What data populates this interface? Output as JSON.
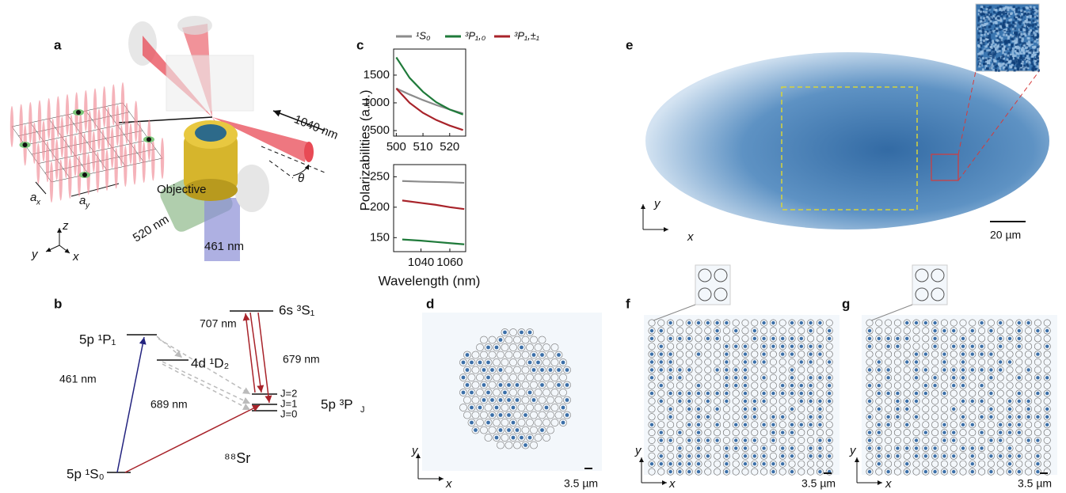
{
  "panel_labels": [
    "a",
    "b",
    "c",
    "d",
    "e",
    "f",
    "g"
  ],
  "panel_a": {
    "beam_ir": "1040 nm",
    "angle": "θ",
    "objective": "Objective",
    "lattice_x": {
      "main": "a",
      "sub": "x"
    },
    "lattice_y": {
      "main": "a",
      "sub": "y"
    },
    "beam_green": "520 nm",
    "beam_blue": "461 nm",
    "axes": {
      "z": "z",
      "y": "y",
      "x": "x"
    }
  },
  "panel_b": {
    "levels": {
      "p1": "5p ¹P₁",
      "d2": "4d ¹D₂",
      "s1": "6s ³S₁",
      "pj": {
        "main": "5p ³P",
        "sub": "J"
      },
      "s0": "5p ¹S₀",
      "j2": "J=2",
      "j1": "J=1",
      "j0": "J=0"
    },
    "transitions": {
      "t707": "707 nm",
      "t679": "679 nm",
      "t461": "461 nm",
      "t689": "689 nm"
    },
    "isotope": "⁸⁸Sr"
  },
  "chart_data": [
    {
      "type": "line",
      "ylabel": "Polarizabilities (a.u.)",
      "x": [
        500,
        505,
        510,
        515,
        520,
        525
      ],
      "xlim": [
        499,
        526
      ],
      "xticks": [
        500,
        510,
        520
      ],
      "ylim": [
        400,
        1970
      ],
      "yticks": [
        500,
        1000,
        1500
      ],
      "series": [
        {
          "name": "¹S₀",
          "color": "#8c8c8c",
          "values": [
            1260,
            1150,
            1050,
            960,
            880,
            810
          ]
        },
        {
          "name": "³P₁,₀",
          "color": "#1f7a3a",
          "values": [
            1820,
            1450,
            1200,
            1010,
            880,
            790
          ]
        },
        {
          "name": "³P₁,±₁",
          "color": "#a8232a",
          "values": [
            1260,
            1000,
            820,
            690,
            590,
            510
          ]
        }
      ]
    },
    {
      "type": "line",
      "xlabel": "Wavelength (nm)",
      "x": [
        1027,
        1040,
        1050,
        1060,
        1070
      ],
      "xlim": [
        1021,
        1071
      ],
      "xticks": [
        1040,
        1060
      ],
      "ylim": [
        127,
        270
      ],
      "yticks": [
        150,
        200,
        250
      ],
      "series": [
        {
          "color": "#8c8c8c",
          "values": [
            243,
            242,
            241.5,
            241,
            240
          ]
        },
        {
          "color": "#1f7a3a",
          "values": [
            147,
            145,
            143,
            141,
            139
          ]
        },
        {
          "color": "#a8232a",
          "values": [
            211,
            207,
            204,
            200,
            197
          ]
        }
      ]
    }
  ],
  "panel_d": {
    "axes": {
      "y": "y",
      "x": "x"
    },
    "scale": "3.5 µm"
  },
  "panel_e": {
    "axes": {
      "y": "y",
      "x": "x"
    },
    "scale": "20 µm"
  },
  "panel_f": {
    "axes": {
      "y": "y",
      "x": "x"
    },
    "scale": "3.5 µm"
  },
  "panel_g": {
    "axes": {
      "y": "y",
      "x": "x"
    },
    "scale": "3.5 µm"
  }
}
